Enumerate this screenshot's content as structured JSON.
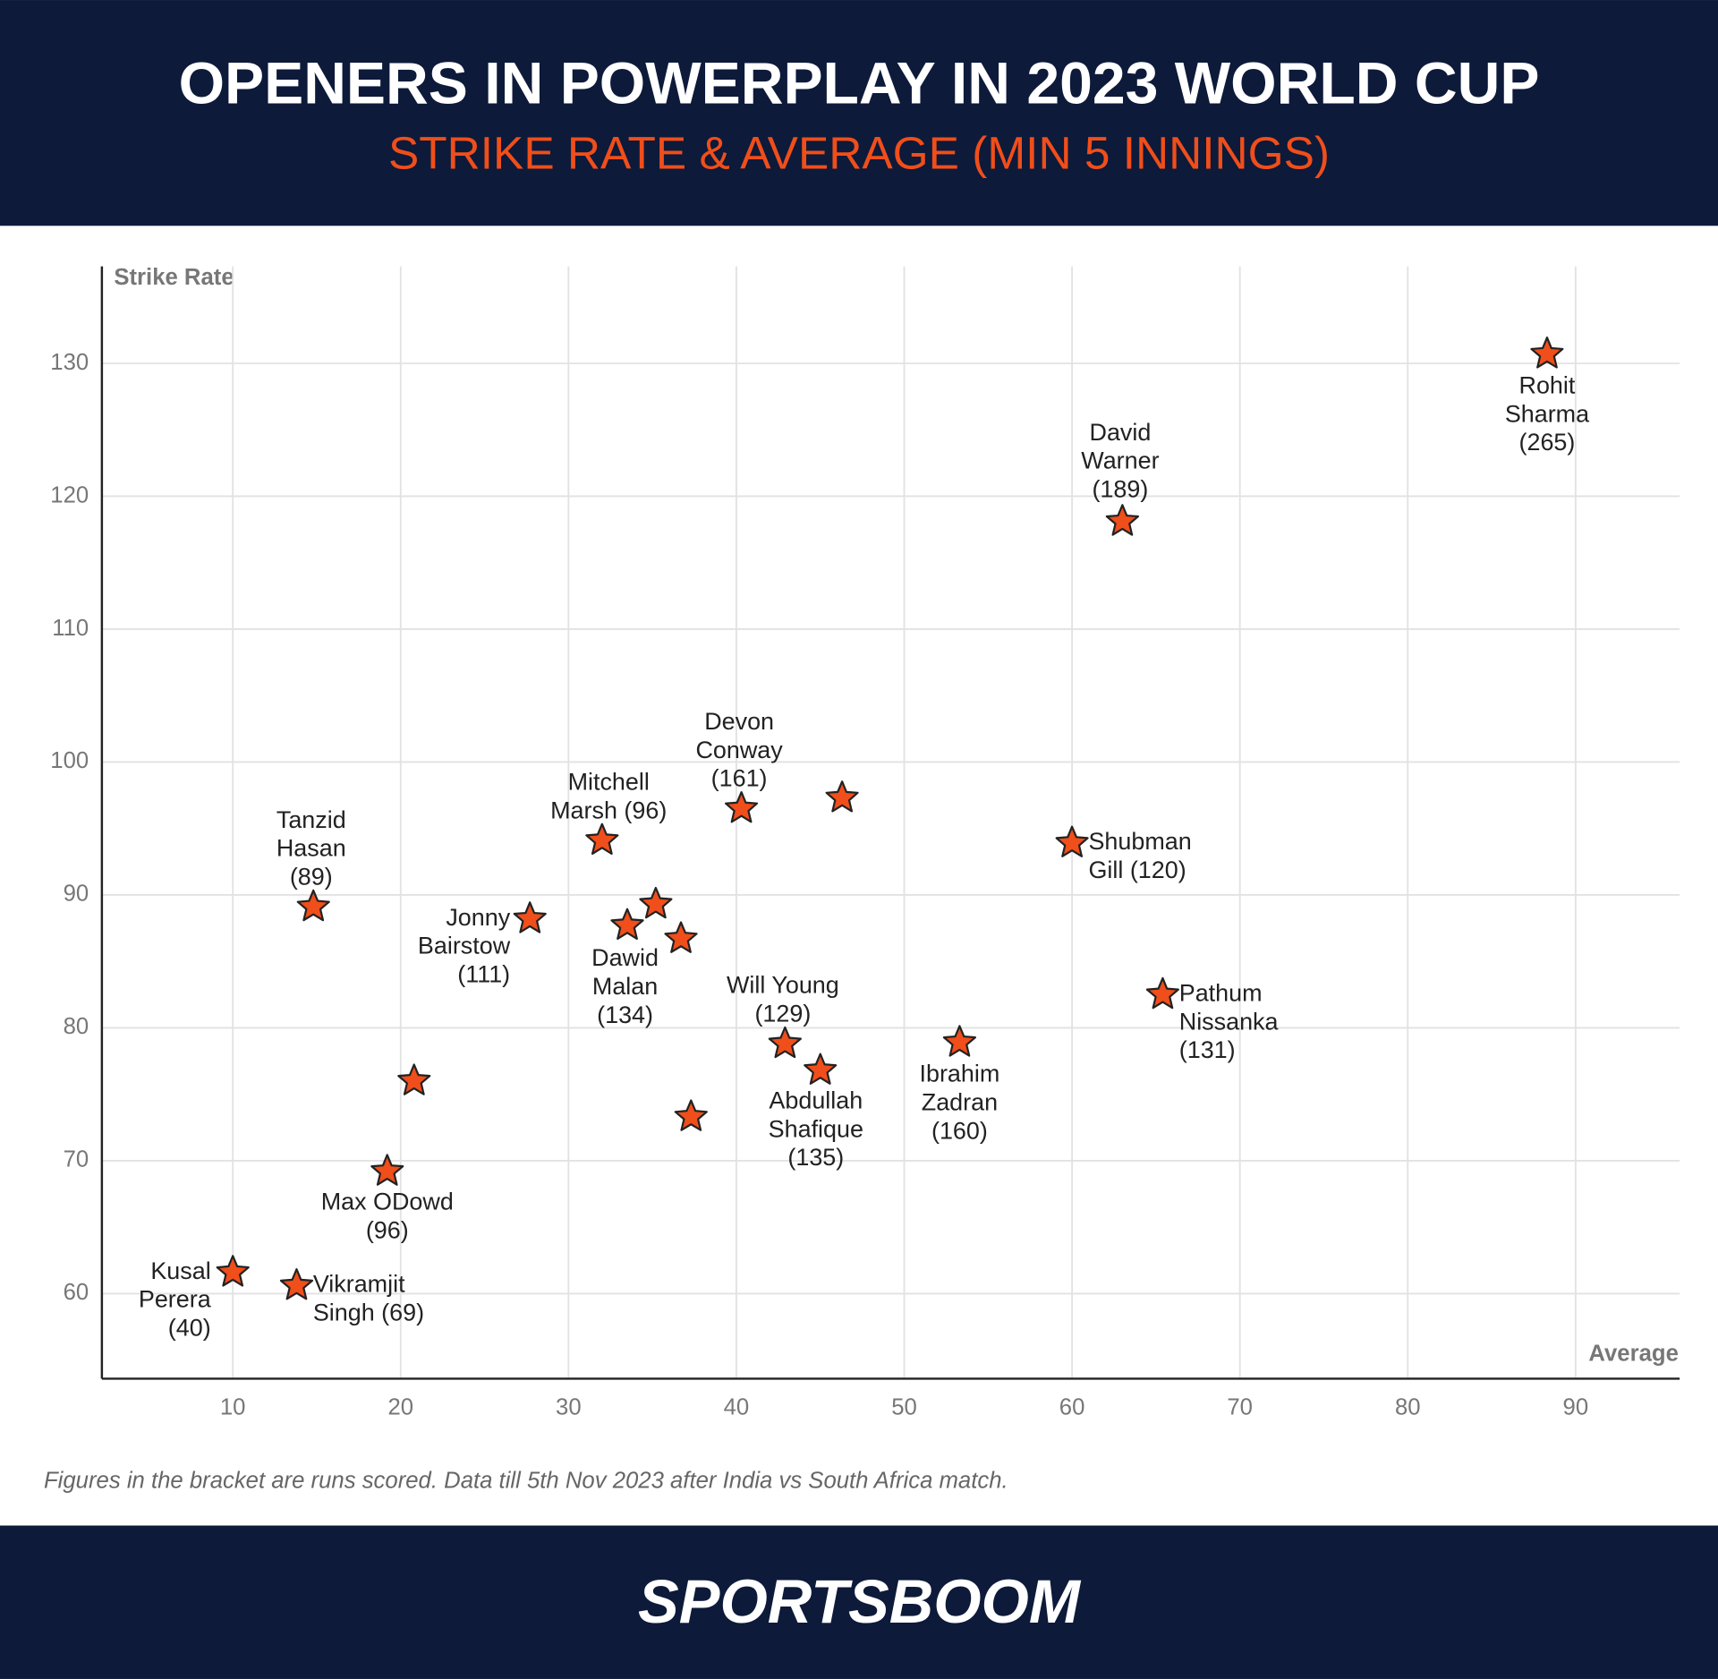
{
  "brand": "SPORTSBOOM",
  "chart_data": {
    "type": "scatter",
    "title": "OPENERS IN POWERPLAY IN 2023 WORLD CUP",
    "subtitle": "STRIKE RATE & AVERAGE (MIN 5 INNINGS)",
    "x_label": "Average",
    "y_label": "Strike Rate",
    "footnote": "Figures in the bracket are runs scored. Data till 5th Nov 2023 after India vs South Africa match.",
    "color": "#f04e1a",
    "x": [
      88.3,
      63.0,
      40.3,
      46.3,
      32.0,
      60.0,
      14.8,
      27.7,
      35.2,
      33.5,
      36.7,
      65.4,
      42.9,
      53.3,
      45.0,
      20.8,
      37.3,
      19.2,
      10.0,
      13.8
    ],
    "y": [
      130.7,
      118.1,
      96.5,
      97.3,
      94.1,
      93.9,
      89.1,
      88.2,
      89.3,
      87.7,
      86.7,
      82.5,
      78.8,
      78.9,
      76.8,
      76.0,
      73.3,
      69.2,
      61.6,
      60.6
    ],
    "point_labels": [
      [
        "Rohit",
        "Sharma",
        "(265)"
      ],
      [
        "David",
        "Warner",
        "(189)"
      ],
      [
        "Devon",
        "Conway",
        "(161)"
      ],
      null,
      [
        "Mitchell",
        "Marsh (96)"
      ],
      [
        "Shubman",
        "Gill (120)"
      ],
      [
        "Tanzid",
        "Hasan",
        "(89)"
      ],
      [
        "Jonny",
        "Bairstow",
        "(111)"
      ],
      null,
      [
        "Dawid",
        "Malan",
        "(134)"
      ],
      null,
      [
        "Pathum",
        "Nissanka",
        "(131)"
      ],
      [
        "Will Young",
        "(129)"
      ],
      [
        "Ibrahim",
        "Zadran",
        "(160)"
      ],
      [
        "Abdullah",
        "Shafique",
        "(135)"
      ],
      null,
      null,
      [
        "Max ODowd",
        "(96)"
      ],
      [
        "Kusal",
        "Perera",
        "(40)"
      ],
      [
        "Vikramjit",
        "Singh (69)"
      ]
    ],
    "xlim": [
      2.2,
      96.2
    ],
    "ylim": [
      53.6,
      137.3
    ],
    "xticks": [
      10,
      20,
      30,
      40,
      50,
      60,
      70,
      80,
      90
    ],
    "yticks": [
      60,
      70,
      80,
      90,
      100,
      110,
      120,
      130
    ],
    "grid": true
  }
}
